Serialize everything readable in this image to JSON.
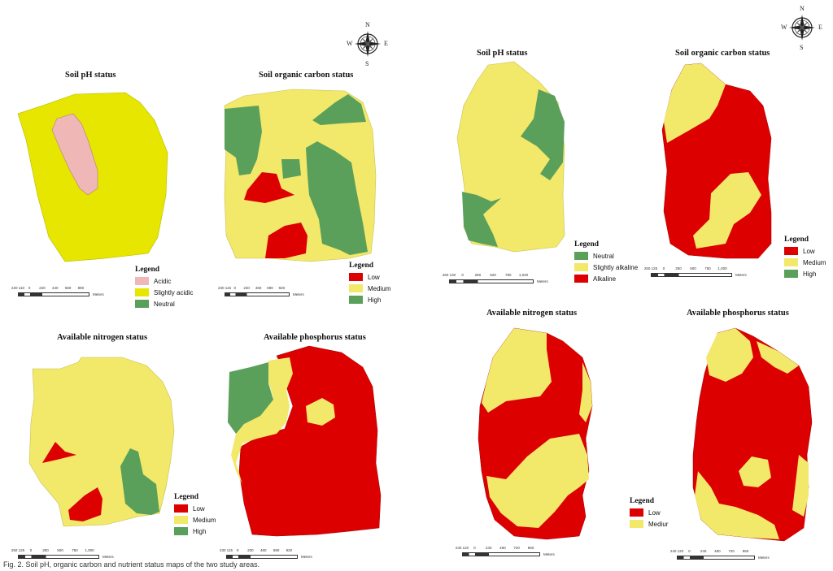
{
  "colors": {
    "acidic": "#f0b7b7",
    "slightly_acidic": "#e6e600",
    "neutral": "#5aa05a",
    "low": "#dd0000",
    "medium": "#f2e86a",
    "high": "#5aa05a",
    "slightly_alkaline": "#f2e86a",
    "alkaline": "#dd0000"
  },
  "compass": {
    "n": "N",
    "s": "S",
    "e": "E",
    "w": "W"
  },
  "left": {
    "ph": {
      "title": "Soil pH status",
      "legend_title": "Legend",
      "legend": [
        "Acidic",
        "Slightly acidic",
        "Neutral"
      ],
      "scale_ticks": [
        "220 110",
        "0",
        "220",
        "440",
        "660",
        "880"
      ],
      "scale_unit": "Meters"
    },
    "oc": {
      "title": "Soil organic carbon status",
      "legend_title": "Legend",
      "legend": [
        "Low",
        "Medium",
        "High"
      ],
      "scale_ticks": [
        "230 115",
        "0",
        "230",
        "460",
        "690",
        "920"
      ],
      "scale_unit": "Meters"
    },
    "n": {
      "title": "Available nitrogen status",
      "legend_title": "Legend",
      "legend": [
        "Low",
        "Medium",
        "High"
      ],
      "scale_ticks": [
        "250 125",
        "0",
        "250",
        "500",
        "750",
        "1,000"
      ],
      "scale_unit": "Meters"
    },
    "p": {
      "title": "Available phosphorus status",
      "legend_title": "Legend",
      "legend": [
        "Low",
        "Medium",
        "High"
      ],
      "scale_ticks": [
        "230 115",
        "0",
        "230",
        "460",
        "690",
        "920"
      ],
      "scale_unit": "Meters"
    }
  },
  "right": {
    "ph": {
      "title": "Soil pH status",
      "legend_title": "Legend",
      "legend": [
        "Neutral",
        "Slightly alkaline",
        "Alkaline"
      ],
      "scale_ticks": [
        "260 130",
        "0",
        "260",
        "520",
        "780",
        "1,040"
      ],
      "scale_unit": "Meters"
    },
    "oc": {
      "title": "Soil organic carbon status",
      "legend_title": "Legend",
      "legend": [
        "Low",
        "Medium",
        "High"
      ],
      "scale_ticks": [
        "250 125",
        "0",
        "250",
        "500",
        "750",
        "1,000"
      ],
      "scale_unit": "Meters"
    },
    "n": {
      "title": "Available nitrogen status",
      "legend_title": "Legend",
      "legend": [
        "Low",
        "Mediur"
      ],
      "scale_ticks": [
        "240 120",
        "0",
        "240",
        "480",
        "720",
        "960"
      ],
      "scale_unit": "Meters"
    },
    "p": {
      "title": "Available phosphorus status",
      "legend_title": "",
      "legend": [],
      "scale_ticks": [
        "240 120",
        "0",
        "240",
        "480",
        "720",
        "960"
      ],
      "scale_unit": "Meters"
    }
  },
  "caption": "Fig. 2. Soil pH, organic carbon and nutrient status maps of the two study areas."
}
